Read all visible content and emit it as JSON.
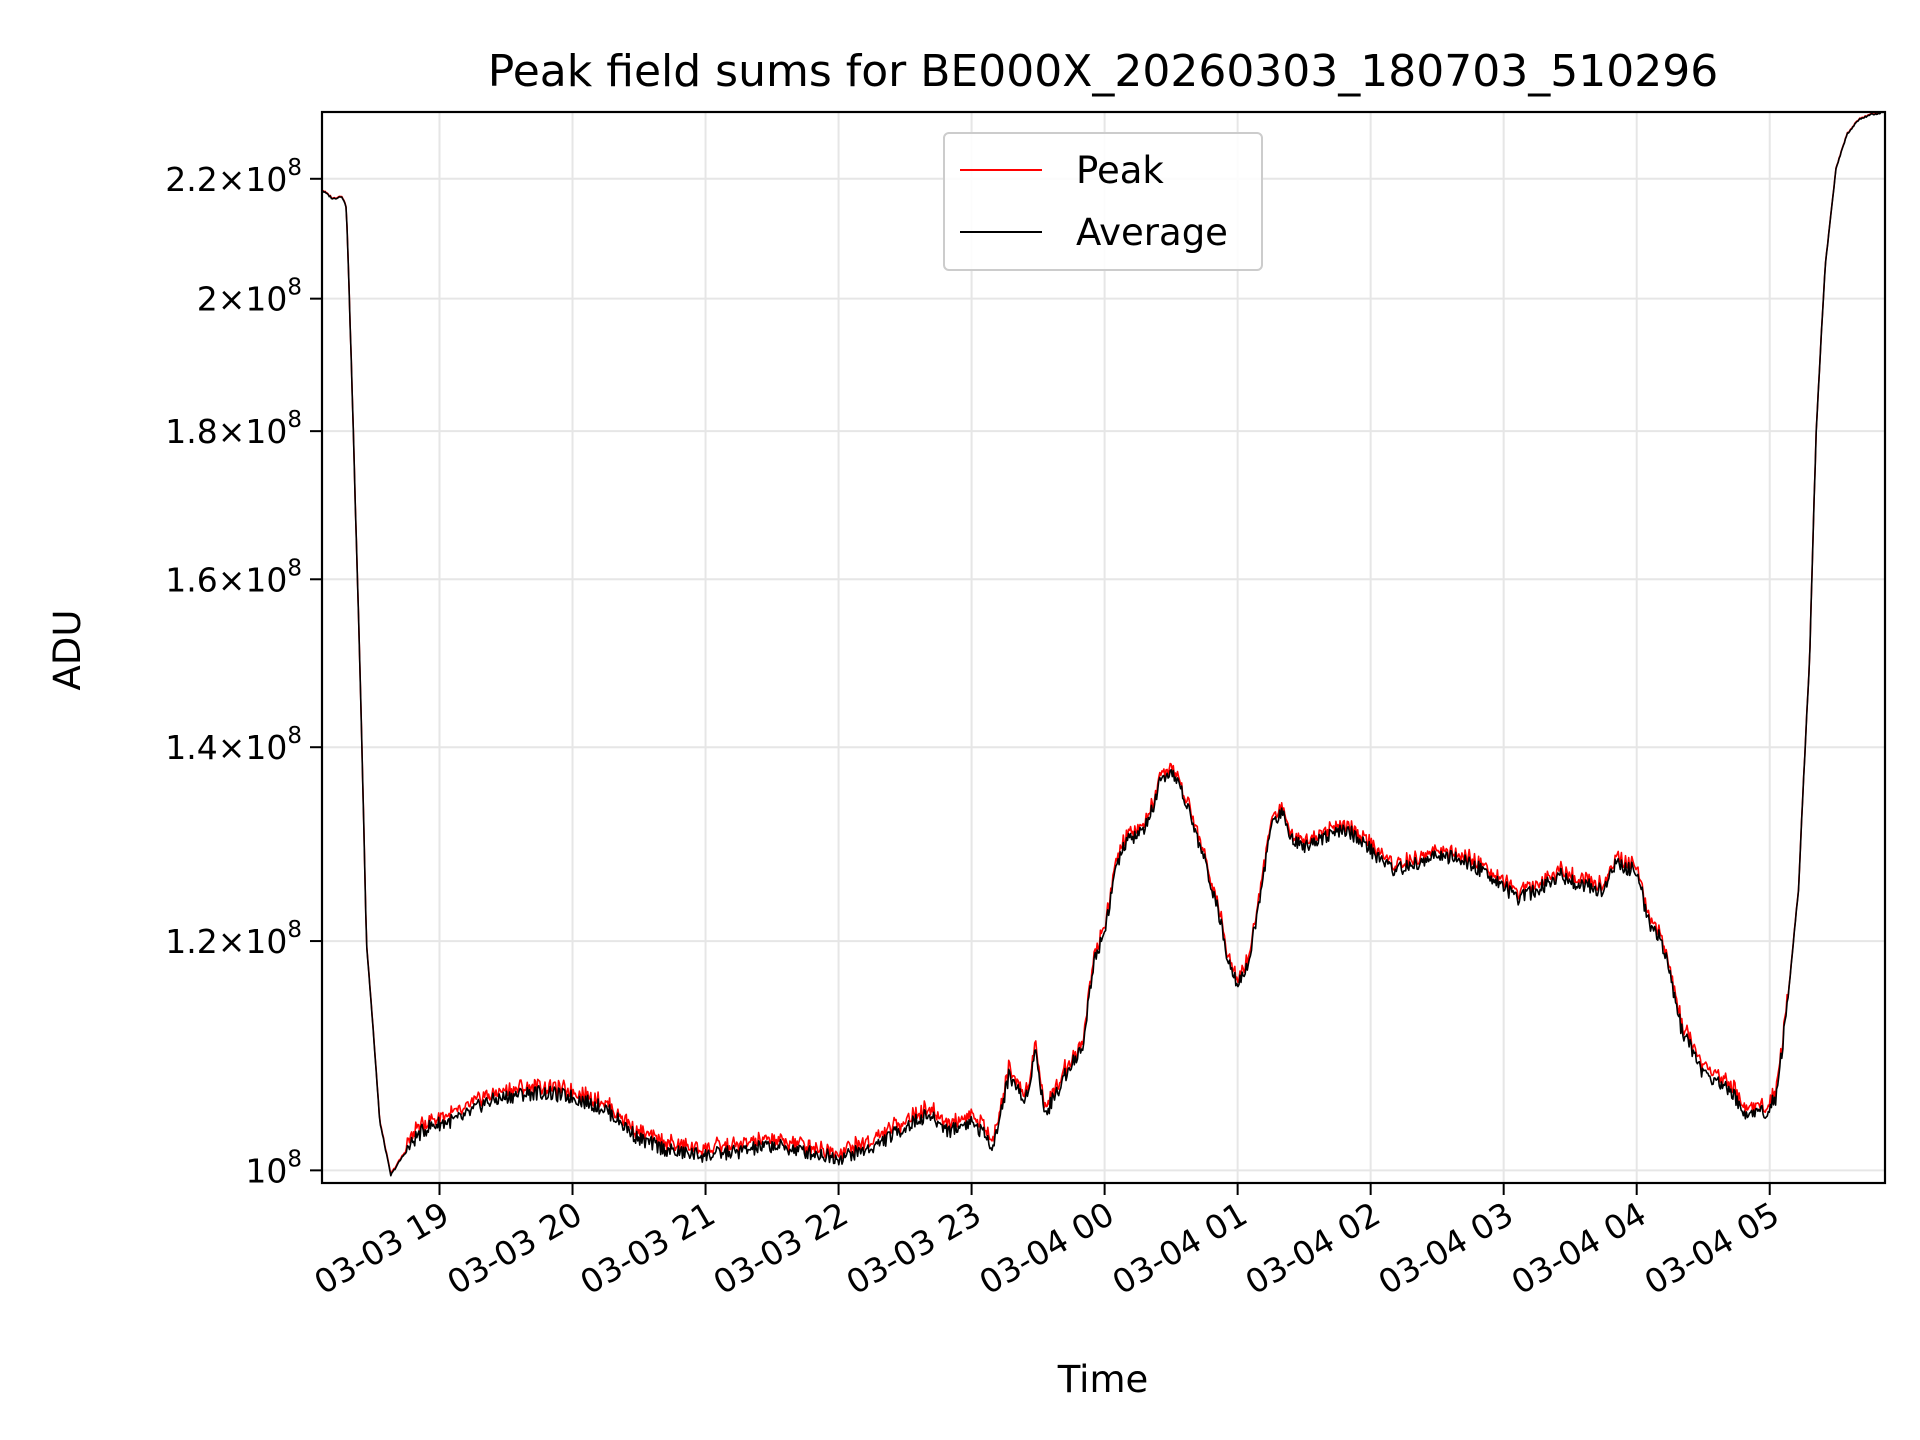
{
  "chart_data": {
    "type": "line",
    "title": "Peak field sums for BE000X_20260303_180703_510296",
    "xlabel": "Time",
    "ylabel": "ADU",
    "y_scale": "log",
    "xlim": [
      "2026-03-03 18:07",
      "2026-03-04 05:52"
    ],
    "ylim": [
      99000000,
      232000000
    ],
    "grid": true,
    "legend_position": "top-center",
    "x_ticks": [
      {
        "t": "2026-03-03 19:00",
        "label": "03-03 19"
      },
      {
        "t": "2026-03-03 20:00",
        "label": "03-03 20"
      },
      {
        "t": "2026-03-03 21:00",
        "label": "03-03 21"
      },
      {
        "t": "2026-03-03 22:00",
        "label": "03-03 22"
      },
      {
        "t": "2026-03-03 23:00",
        "label": "03-03 23"
      },
      {
        "t": "2026-03-04 00:00",
        "label": "03-04 00"
      },
      {
        "t": "2026-03-04 01:00",
        "label": "03-04 01"
      },
      {
        "t": "2026-03-04 02:00",
        "label": "03-04 02"
      },
      {
        "t": "2026-03-04 03:00",
        "label": "03-04 03"
      },
      {
        "t": "2026-03-04 04:00",
        "label": "03-04 04"
      },
      {
        "t": "2026-03-04 05:00",
        "label": "03-04 05"
      }
    ],
    "y_ticks": [
      {
        "value": 100000000,
        "mantissa": "",
        "exponent": "8"
      },
      {
        "value": 120000000,
        "mantissa": "1.2",
        "exponent": "8"
      },
      {
        "value": 140000000,
        "mantissa": "1.4",
        "exponent": "8"
      },
      {
        "value": 160000000,
        "mantissa": "1.6",
        "exponent": "8"
      },
      {
        "value": 180000000,
        "mantissa": "1.8",
        "exponent": "8"
      },
      {
        "value": 200000000,
        "mantissa": "2",
        "exponent": "8"
      },
      {
        "value": 220000000,
        "mantissa": "2.2",
        "exponent": "8"
      }
    ],
    "series": [
      {
        "name": "Peak",
        "color": "#ff0000",
        "offset": 500000
      },
      {
        "name": "Average",
        "color": "#000000",
        "offset": 0
      }
    ],
    "x": [
      "2026-03-03 18:07",
      "2026-03-03 18:12",
      "2026-03-03 18:16",
      "2026-03-03 18:18",
      "2026-03-03 18:22",
      "2026-03-03 18:27",
      "2026-03-03 18:33",
      "2026-03-03 18:38",
      "2026-03-03 18:43",
      "2026-03-03 18:50",
      "2026-03-03 18:55",
      "2026-03-03 19:00",
      "2026-03-03 19:10",
      "2026-03-03 19:20",
      "2026-03-03 19:30",
      "2026-03-03 19:35",
      "2026-03-03 19:45",
      "2026-03-03 20:00",
      "2026-03-03 20:15",
      "2026-03-03 20:30",
      "2026-03-03 20:45",
      "2026-03-03 21:00",
      "2026-03-03 21:15",
      "2026-03-03 21:30",
      "2026-03-03 21:45",
      "2026-03-03 22:00",
      "2026-03-03 22:15",
      "2026-03-03 22:30",
      "2026-03-03 22:40",
      "2026-03-03 22:50",
      "2026-03-03 23:00",
      "2026-03-03 23:10",
      "2026-03-03 23:17",
      "2026-03-03 23:24",
      "2026-03-03 23:29",
      "2026-03-03 23:33",
      "2026-03-03 23:40",
      "2026-03-03 23:45",
      "2026-03-03 23:50",
      "2026-03-03 23:55",
      "2026-03-04 00:00",
      "2026-03-04 00:05",
      "2026-03-04 00:10",
      "2026-03-04 00:15",
      "2026-03-04 00:20",
      "2026-03-04 00:25",
      "2026-03-04 00:32",
      "2026-03-04 00:38",
      "2026-03-04 00:45",
      "2026-03-04 00:50",
      "2026-03-04 00:55",
      "2026-03-04 01:00",
      "2026-03-04 01:05",
      "2026-03-04 01:10",
      "2026-03-04 01:15",
      "2026-03-04 01:20",
      "2026-03-04 01:25",
      "2026-03-04 01:30",
      "2026-03-04 01:40",
      "2026-03-04 01:50",
      "2026-03-04 02:00",
      "2026-03-04 02:10",
      "2026-03-04 02:20",
      "2026-03-04 02:30",
      "2026-03-04 02:40",
      "2026-03-04 02:50",
      "2026-03-04 03:00",
      "2026-03-04 03:05",
      "2026-03-04 03:15",
      "2026-03-04 03:25",
      "2026-03-04 03:35",
      "2026-03-04 03:45",
      "2026-03-04 03:50",
      "2026-03-04 04:00",
      "2026-03-04 04:05",
      "2026-03-04 04:10",
      "2026-03-04 04:15",
      "2026-03-04 04:20",
      "2026-03-04 04:30",
      "2026-03-04 04:40",
      "2026-03-04 04:50",
      "2026-03-04 04:58",
      "2026-03-04 05:03",
      "2026-03-04 05:08",
      "2026-03-04 05:13",
      "2026-03-04 05:18",
      "2026-03-04 05:21",
      "2026-03-04 05:25",
      "2026-03-04 05:30",
      "2026-03-04 05:35",
      "2026-03-04 05:40",
      "2026-03-04 05:45",
      "2026-03-04 05:52"
    ],
    "values": [
      218000000,
      216500000,
      217000000,
      215000000,
      170000000,
      120000000,
      104000000,
      99600000,
      101000000,
      102800000,
      103500000,
      103800000,
      104200000,
      105500000,
      106000000,
      106200000,
      106400000,
      106000000,
      105000000,
      102500000,
      101500000,
      101200000,
      101500000,
      102000000,
      101500000,
      101000000,
      101800000,
      103500000,
      104500000,
      103200000,
      104000000,
      102000000,
      108000000,
      105500000,
      110000000,
      104500000,
      107000000,
      109000000,
      110000000,
      118000000,
      121000000,
      127000000,
      130000000,
      130500000,
      132000000,
      136000000,
      137000000,
      133000000,
      128000000,
      124000000,
      119000000,
      116000000,
      118000000,
      124000000,
      131500000,
      133000000,
      130000000,
      129500000,
      130500000,
      131000000,
      129000000,
      127000000,
      127500000,
      128500000,
      128000000,
      127000000,
      125500000,
      124000000,
      125000000,
      126500000,
      125500000,
      125000000,
      127500000,
      127000000,
      122000000,
      120500000,
      117000000,
      112000000,
      108000000,
      107000000,
      104500000,
      104800000,
      106000000,
      114000000,
      125000000,
      150000000,
      180000000,
      205000000,
      222000000,
      228000000,
      230500000,
      231500000,
      232000000
    ]
  }
}
